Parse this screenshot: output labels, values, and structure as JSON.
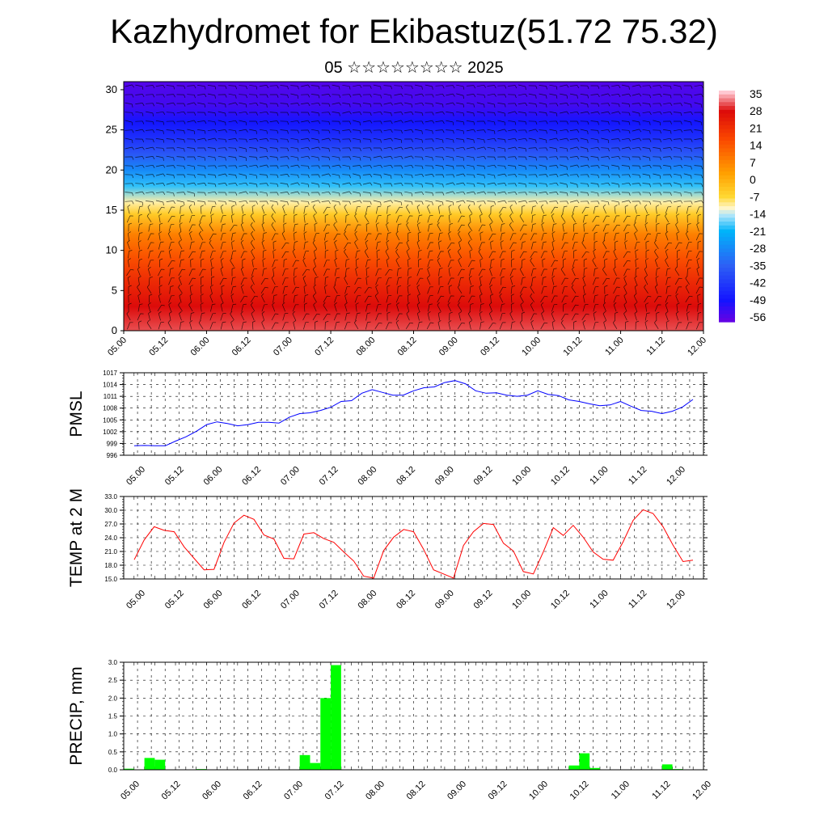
{
  "header": {
    "title": "Kazhydromet for Ekibastuz(51.72 75.32)",
    "subtitle": "05 ☆☆☆☆☆☆☆☆ 2025"
  },
  "chart_data": [
    {
      "type": "heatmap",
      "title": "",
      "xlabel": "",
      "ylabel": "",
      "x_tick_labels": [
        "05.00",
        "05.12",
        "06.00",
        "06.12",
        "07.00",
        "07.12",
        "08.00",
        "08.12",
        "09.00",
        "09.12",
        "10.00",
        "10.12",
        "11.00",
        "11.12",
        "12.00"
      ],
      "y_ticks": [
        0,
        5,
        10,
        15,
        20,
        25,
        30
      ],
      "ylim": [
        0,
        31
      ],
      "colorbar": {
        "labels": [
          "35",
          "28",
          "21",
          "14",
          "7",
          "0",
          "-7",
          "-14",
          "-21",
          "-28",
          "-35",
          "-42",
          "-49",
          "-56"
        ],
        "range": [
          -63,
          35
        ]
      },
      "overlay": "wind barbs",
      "field_profile": [
        {
          "level": 0,
          "value": 30
        },
        {
          "level": 3,
          "value": 27
        },
        {
          "level": 6,
          "value": 21
        },
        {
          "level": 9,
          "value": 14
        },
        {
          "level": 12,
          "value": 6
        },
        {
          "level": 14.5,
          "value": -7
        },
        {
          "level": 16,
          "value": -13
        },
        {
          "level": 18,
          "value": -22
        },
        {
          "level": 20,
          "value": -31
        },
        {
          "level": 22,
          "value": -40
        },
        {
          "level": 24,
          "value": -48
        },
        {
          "level": 26,
          "value": -53
        },
        {
          "level": 28,
          "value": -58
        },
        {
          "level": 31,
          "value": -60
        }
      ]
    },
    {
      "type": "line",
      "ylabel": "PMSL",
      "ylim": [
        996,
        1017
      ],
      "y_ticks": [
        996,
        999,
        1002,
        1005,
        1008,
        1011,
        1014,
        1017
      ],
      "color": "#0000ff",
      "x_tick_labels": [
        "05.00",
        "05.12",
        "06.00",
        "06.12",
        "07.00",
        "07.12",
        "08.00",
        "08.12",
        "09.00",
        "09.12",
        "10.00",
        "10.12",
        "11.00",
        "11.12",
        "12.00"
      ],
      "values": [
        998.4,
        998.5,
        998.4,
        998.4,
        999.6,
        1000.7,
        1002.1,
        1003.8,
        1004.5,
        1004.1,
        1003.5,
        1003.8,
        1004.4,
        1004.4,
        1004.2,
        1005.7,
        1006.6,
        1006.8,
        1007.4,
        1008.2,
        1009.7,
        1009.9,
        1011.8,
        1012.7,
        1012.0,
        1011.3,
        1011.3,
        1012.4,
        1013.2,
        1013.4,
        1014.5,
        1015.0,
        1014.2,
        1012.4,
        1011.8,
        1011.9,
        1011.3,
        1011.0,
        1011.3,
        1012.4,
        1011.5,
        1011.2,
        1010.1,
        1009.7,
        1009.1,
        1008.6,
        1008.8,
        1009.7,
        1008.5,
        1007.4,
        1007.2,
        1006.6,
        1007.2,
        1008.3,
        1010.2
      ]
    },
    {
      "type": "line",
      "ylabel": "TEMP at 2 M",
      "ylim": [
        15.0,
        33.0
      ],
      "y_ticks": [
        "15.0",
        "18.0",
        "21.0",
        "24.0",
        "27.0",
        "30.0",
        "33.0"
      ],
      "color": "#ff0000",
      "x_tick_labels": [
        "05.00",
        "05.12",
        "06.00",
        "06.12",
        "07.00",
        "07.12",
        "08.00",
        "08.12",
        "09.00",
        "09.12",
        "10.00",
        "10.12",
        "11.00",
        "11.12",
        "12.00"
      ],
      "values": [
        19.2,
        23.5,
        26.4,
        25.6,
        25.3,
        22.0,
        19.5,
        17.0,
        17.1,
        23.0,
        27.2,
        28.9,
        28.0,
        24.6,
        23.7,
        19.5,
        19.4,
        24.8,
        25.1,
        23.8,
        23.0,
        20.9,
        18.9,
        15.6,
        15.2,
        21.2,
        24.1,
        25.8,
        25.3,
        21.5,
        17.0,
        16.1,
        15.2,
        22.3,
        25.3,
        27.1,
        26.9,
        22.8,
        21.1,
        16.6,
        16.1,
        20.9,
        26.2,
        24.5,
        26.7,
        24.1,
        20.9,
        19.3,
        19.1,
        23.1,
        27.8,
        30.1,
        29.3,
        26.4,
        22.4,
        18.8,
        19.1
      ]
    },
    {
      "type": "bar",
      "ylabel": "PRECIP, mm",
      "ylim": [
        0.0,
        3.0
      ],
      "y_ticks": [
        "0.0",
        "0.5",
        "1.0",
        "1.5",
        "2.0",
        "2.5",
        "3.0"
      ],
      "color": "#00ff00",
      "x_tick_labels": [
        "05.00",
        "05.12",
        "06.00",
        "06.12",
        "07.00",
        "07.12",
        "08.00",
        "08.12",
        "09.00",
        "09.12",
        "10.00",
        "10.12",
        "11.00",
        "11.12",
        "12.00"
      ],
      "values": [
        0.03,
        0,
        0.33,
        0.28,
        0,
        0,
        0,
        0.02,
        0,
        0,
        0,
        0,
        0,
        0,
        0,
        0,
        0,
        0.41,
        0.19,
        2.0,
        2.92,
        0,
        0,
        0,
        0,
        0,
        0,
        0,
        0,
        0,
        0,
        0,
        0,
        0,
        0,
        0.01,
        0,
        0,
        0,
        0,
        0,
        0,
        0,
        0.12,
        0.46,
        0.05,
        0,
        0.01,
        0,
        0,
        0,
        0,
        0.15,
        0.02,
        0,
        0
      ]
    }
  ]
}
